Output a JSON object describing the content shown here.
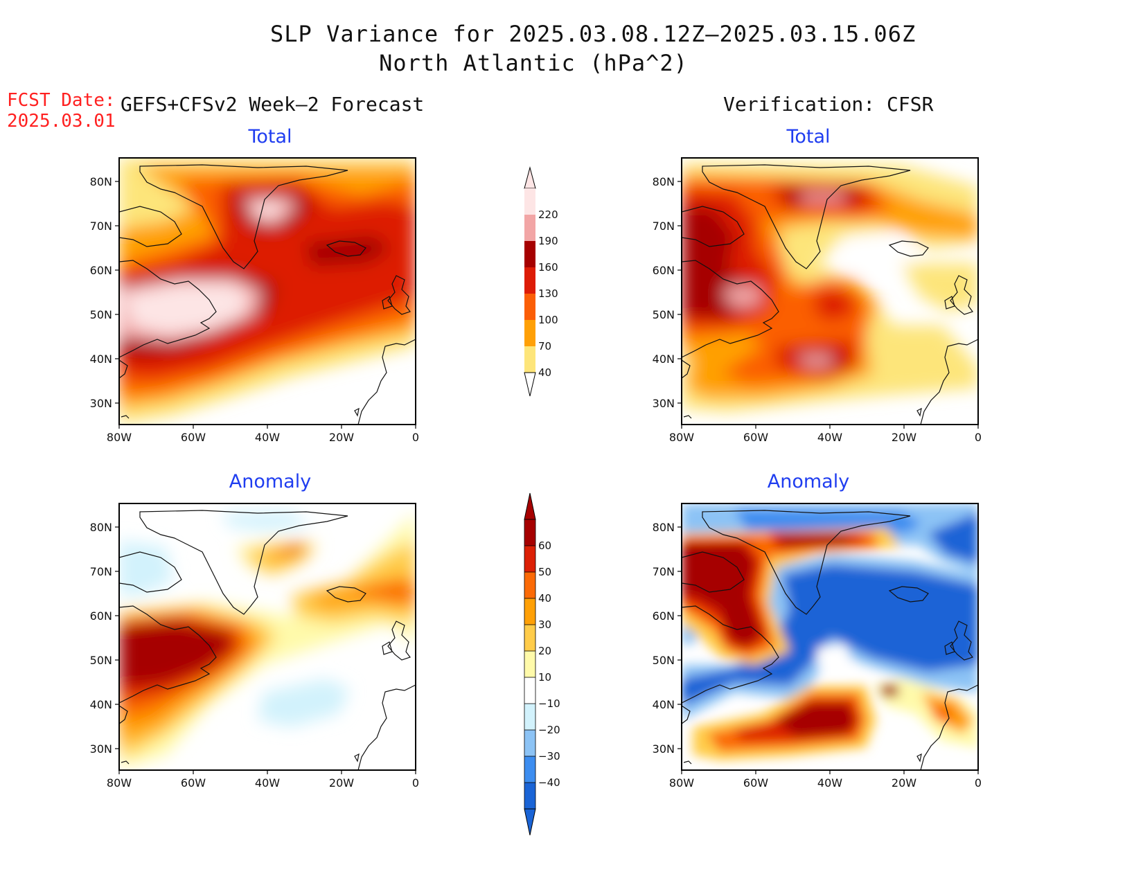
{
  "title": {
    "line1": "SLP Variance for 2025.03.08.12Z–2025.03.15.06Z",
    "line2": "North Atlantic (hPa^2)"
  },
  "fcst_date": {
    "label": "FCST Date:",
    "value": "2025.03.01"
  },
  "left_heading": "GEFS+CFSv2 Week–2 Forecast",
  "right_heading": "Verification: CFSR",
  "panels": [
    {
      "id": "forecast-total",
      "title": "Total"
    },
    {
      "id": "verification-total",
      "title": "Total"
    },
    {
      "id": "forecast-anomaly",
      "title": "Anomaly"
    },
    {
      "id": "verification-anomaly",
      "title": "Anomaly"
    }
  ],
  "axes": {
    "lon_ticks": [
      "80W",
      "60W",
      "40W",
      "20W",
      "0"
    ],
    "lat_ticks": [
      "30N",
      "40N",
      "50N",
      "60N",
      "70N",
      "80N"
    ]
  },
  "colorbar_total": {
    "labels": [
      "40",
      "70",
      "100",
      "130",
      "160",
      "190",
      "220"
    ],
    "colors": [
      "#fde57a",
      "#ffa006",
      "#fb5e06",
      "#dd1c06",
      "#a60000",
      "#f2a5a5",
      "#fde5e5"
    ]
  },
  "colorbar_anomaly": {
    "labels": [
      "−40",
      "−30",
      "−20",
      "−10",
      "10",
      "20",
      "30",
      "40",
      "50",
      "60"
    ],
    "colors": [
      "#1a64d6",
      "#3c8df0",
      "#8cc3f5",
      "#d2f2fc",
      "#ffffff",
      "#fffaaa",
      "#ffcc4a",
      "#ffa006",
      "#fb6a06",
      "#dc2005",
      "#a60000"
    ]
  }
}
